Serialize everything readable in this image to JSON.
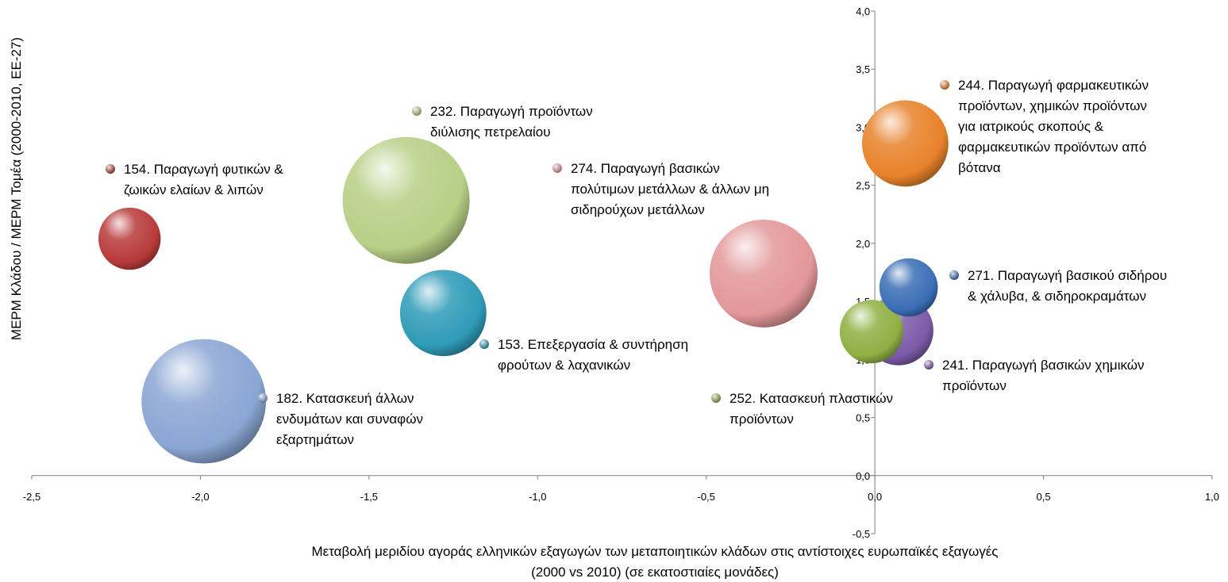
{
  "chart_data": {
    "type": "bubble",
    "title": "",
    "xlabel": "Μεταβολή μεριδίου αγοράς ελληνικών εξαγωγών των μεταποιητικών κλάδων στις αντίστοιχες ευρωπαϊκές εξαγωγές",
    "xlabel2": "(2000 vs 2010) (σε εκατοστιαίες μονάδες)",
    "ylabel": "ΜΕΡΜ Κλάδου / ΜΕΡΜ Τομέα (2000-2010, ΕΕ-27)",
    "xlim": [
      -2.5,
      1.0
    ],
    "ylim": [
      -0.5,
      4.0
    ],
    "x_ticks": [
      "-2,5",
      "-2,0",
      "-1,5",
      "-1,0",
      "-0,5",
      "0,0",
      "0,5",
      "1,0"
    ],
    "y_ticks": [
      "-0,5",
      "0,0",
      "0,5",
      "1,0",
      "1,5",
      "2,0",
      "2,5",
      "3,0",
      "3,5",
      "4,0"
    ],
    "grid": false,
    "legend": "inline-labels",
    "series": [
      {
        "code": "232",
        "x": -1.39,
        "y": 2.37,
        "size": 1.0,
        "color": "#b7cf86",
        "label_lines": [
          "232. Παραγωγή προϊόντων",
          "διύλισης πετρελαίου"
        ]
      },
      {
        "code": "182",
        "x": -1.99,
        "y": 0.64,
        "size": 0.98,
        "color": "#8aa6d4",
        "label_lines": [
          "182. Κατασκευή άλλων",
          "ενδυμάτων και συναφών",
          "εξαρτημάτων"
        ]
      },
      {
        "code": "274",
        "x": -0.33,
        "y": 1.74,
        "size": 0.85,
        "color": "#e3979a",
        "label_lines": [
          "274. Παραγωγή βασικών",
          "πολύτιμων μετάλλων & άλλων μη",
          "σιδηρούχων μετάλλων"
        ]
      },
      {
        "code": "244",
        "x": 0.09,
        "y": 2.86,
        "size": 0.68,
        "color": "#e8822a",
        "label_lines": [
          "244. Παραγωγή φαρμακευτικών",
          "προϊόντων, χημικών προϊόντων",
          "για ιατρικούς σκοπούς &",
          "φαρμακευτικών προϊόντων από",
          "βότανα"
        ]
      },
      {
        "code": "153",
        "x": -1.28,
        "y": 1.4,
        "size": 0.68,
        "color": "#2f9bb8",
        "label_lines": [
          "153. Επεξεργασία & συντήρηση",
          "φρούτων & λαχανικών"
        ]
      },
      {
        "code": "154",
        "x": -2.21,
        "y": 2.04,
        "size": 0.49,
        "color": "#b83a3a",
        "label_lines": [
          "154. Παραγωγή φυτικών &",
          "ζωικών ελαίων & λιπών"
        ]
      },
      {
        "code": "252",
        "x": -0.01,
        "y": 1.24,
        "size": 0.5,
        "color": "#8fb043",
        "label_lines": [
          "252. Κατασκευή πλαστικών",
          "προϊόντων"
        ]
      },
      {
        "code": "271",
        "x": 0.1,
        "y": 1.62,
        "size": 0.46,
        "color": "#3a6eb5",
        "label_lines": [
          "271. Παραγωγή βασικού σιδήρου",
          "& χάλυβα, & σιδηροκραμάτων"
        ]
      },
      {
        "code": "241",
        "x": 0.07,
        "y": 1.25,
        "size": 0.55,
        "color": "#7c5aa8",
        "label_lines": [
          "241. Παραγωγή βασικών χημικών",
          "προϊόντων"
        ]
      }
    ]
  }
}
